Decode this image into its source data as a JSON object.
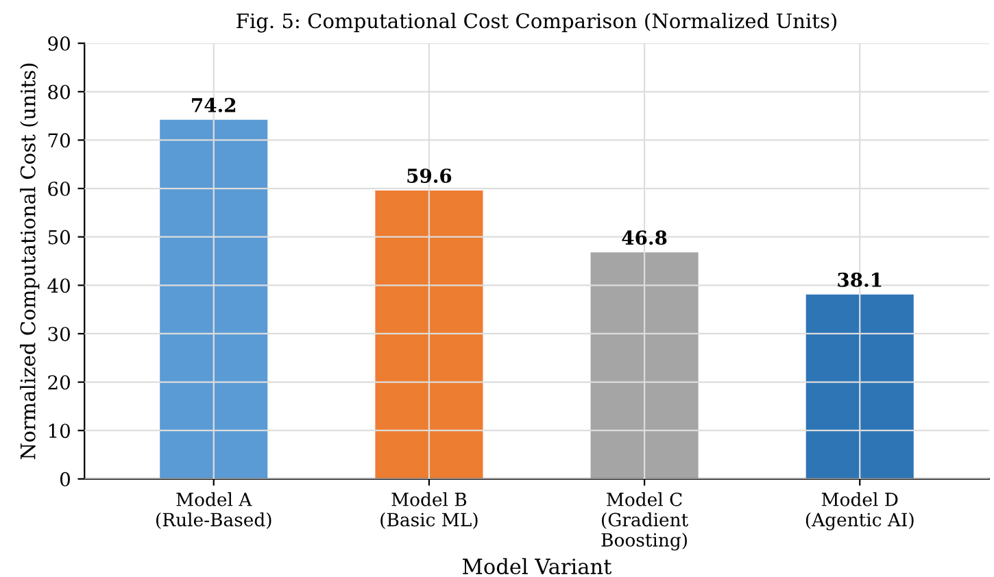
{
  "chart_data": {
    "type": "bar",
    "title": "Fig. 5: Computational Cost Comparison (Normalized Units)",
    "xlabel": "Model Variant",
    "ylabel": "Normalized Computational Cost (units)",
    "categories": [
      "Model A\n(Rule-Based)",
      "Model B\n(Basic ML)",
      "Model C\n(Gradient\nBoosting)",
      "Model D\n(Agentic AI)"
    ],
    "values": [
      74.2,
      59.6,
      46.8,
      38.1
    ],
    "colors": [
      "#5b9bd5",
      "#ed7d31",
      "#a5a5a5",
      "#2e75b6"
    ],
    "ylim": [
      0,
      90
    ],
    "yticks": [
      0,
      10,
      20,
      30,
      40,
      50,
      60,
      70,
      80,
      90
    ],
    "grid": true,
    "data_labels": true
  }
}
